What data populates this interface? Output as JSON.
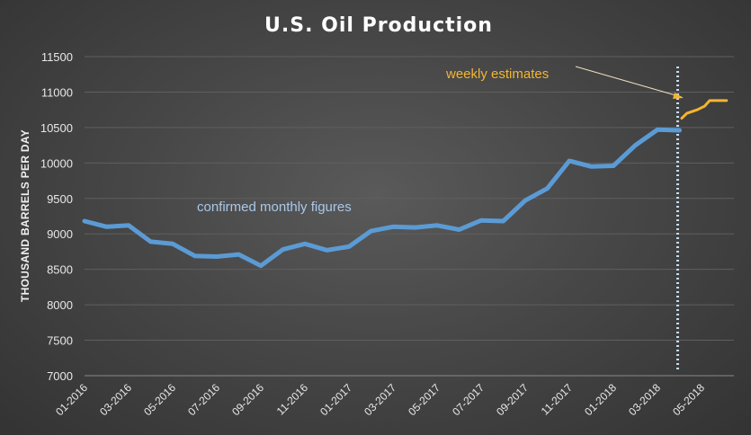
{
  "chart_data": {
    "type": "line",
    "title": "U.S. Oil Production",
    "ylabel": "THOUSAND BARRELS PER DAY",
    "xlabel": "",
    "ylim": [
      7000,
      11500
    ],
    "yticks": [
      7000,
      7500,
      8000,
      8500,
      9000,
      9500,
      10000,
      10500,
      11000,
      11500
    ],
    "x_tick_labels": [
      "01-2016",
      "03-2016",
      "05-2016",
      "07-2016",
      "09-2016",
      "11-2016",
      "01-2017",
      "03-2017",
      "05-2017",
      "07-2017",
      "09-2017",
      "11-2017",
      "01-2018",
      "03-2018",
      "05-2018"
    ],
    "grid": true,
    "series": [
      {
        "key": "monthly",
        "color": "#5b9bd5",
        "x": [
          "2016-01",
          "2016-02",
          "2016-03",
          "2016-04",
          "2016-05",
          "2016-06",
          "2016-07",
          "2016-08",
          "2016-09",
          "2016-10",
          "2016-11",
          "2016-12",
          "2017-01",
          "2017-02",
          "2017-03",
          "2017-04",
          "2017-05",
          "2017-06",
          "2017-07",
          "2017-08",
          "2017-09",
          "2017-10",
          "2017-11",
          "2017-12",
          "2018-01",
          "2018-02",
          "2018-03",
          "2018-04"
        ],
        "values": [
          9180,
          9100,
          9120,
          8890,
          8860,
          8690,
          8680,
          8710,
          8550,
          8780,
          8860,
          8770,
          8820,
          9040,
          9100,
          9090,
          9120,
          9060,
          9190,
          9180,
          9470,
          9640,
          10030,
          9950,
          9960,
          10250,
          10470,
          10460
        ]
      },
      {
        "key": "weekly",
        "color": "#f3b530",
        "x": [
          "2018-04-04",
          "2018-04-11",
          "2018-04-25",
          "2018-05-05",
          "2018-05-12",
          "2018-05-19",
          "2018-06-05"
        ],
        "values": [
          10630,
          10700,
          10750,
          10800,
          10880,
          10880,
          10880
        ]
      }
    ],
    "divider_x": "2018-04",
    "annotations": {
      "monthly_label": "confirmed monthly figures",
      "weekly_label": "weekly estimates"
    }
  }
}
